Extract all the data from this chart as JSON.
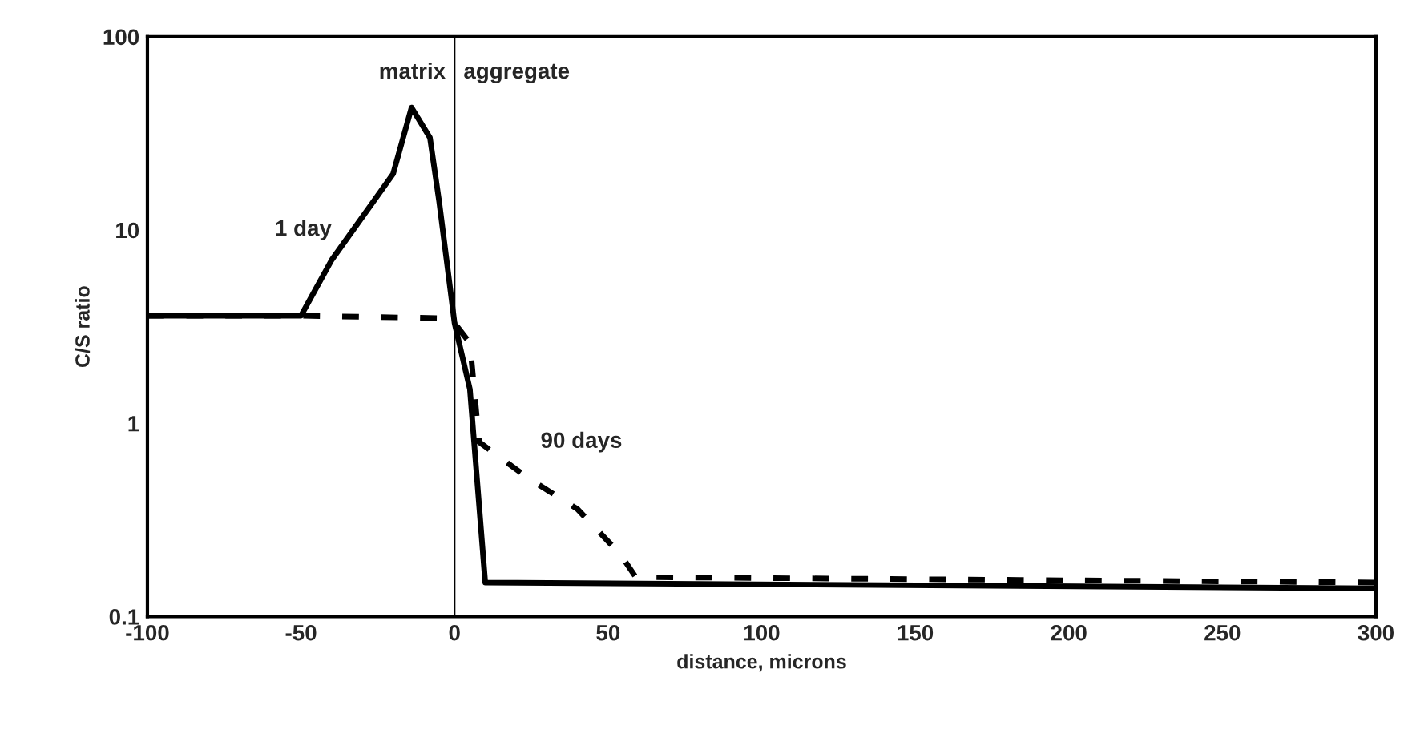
{
  "chart_data": {
    "type": "line",
    "xlabel": "distance, microns",
    "ylabel": "C/S ratio",
    "log": "y",
    "xlim": [
      -100,
      300
    ],
    "xticks": [
      -100,
      -50,
      0,
      50,
      100,
      150,
      200,
      250,
      300
    ],
    "ylim": [
      0.1,
      100
    ],
    "yticks": [
      {
        "value": 0.1,
        "label": "0.1"
      },
      1,
      10,
      100
    ],
    "grid": false,
    "legend": false,
    "series": [
      {
        "name": "1 day",
        "color": "#000000",
        "line_style": "solid",
        "x": [
          -100,
          -50,
          -40,
          -20,
          -14,
          -8,
          -5,
          0,
          5,
          10,
          300
        ],
        "values": [
          3.6,
          3.6,
          7,
          19.5,
          43,
          30,
          14,
          3.3,
          1.5,
          0.15,
          0.14
        ]
      },
      {
        "name": "90 days",
        "color": "#000000",
        "line_style": "dashed",
        "x": [
          -100,
          -50,
          -5,
          0,
          5,
          8,
          24,
          40,
          54,
          59,
          300
        ],
        "values": [
          3.6,
          3.6,
          3.5,
          3.3,
          2.6,
          0.8,
          0.52,
          0.36,
          0.21,
          0.16,
          0.15
        ]
      }
    ],
    "ref_lines": [
      {
        "axis": "x",
        "value": 0,
        "color": "#000000"
      }
    ],
    "annotations": [
      {
        "text": "matrix",
        "x": 0,
        "y": 65
      },
      {
        "text": "aggregate",
        "x": 0,
        "y": 65
      }
    ]
  }
}
